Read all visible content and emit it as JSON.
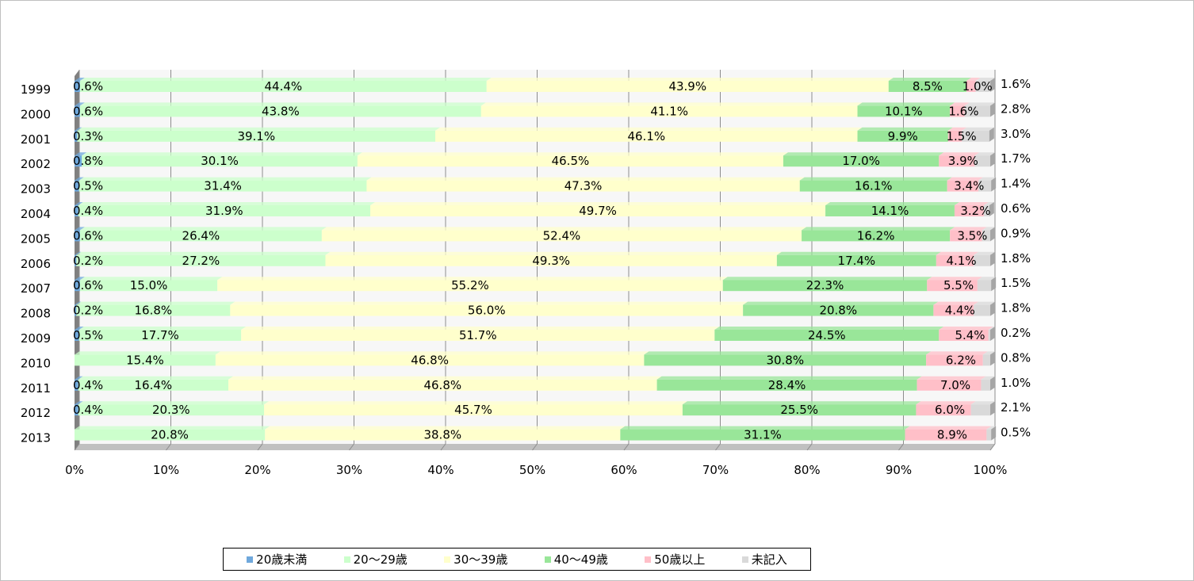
{
  "chart_data": {
    "type": "bar",
    "orientation": "horizontal",
    "stacked": "percent",
    "categories": [
      "1999",
      "2000",
      "2001",
      "2002",
      "2003",
      "2004",
      "2005",
      "2006",
      "2007",
      "2008",
      "2009",
      "2010",
      "2011",
      "2012",
      "2013"
    ],
    "series": [
      {
        "name": "20歳未満",
        "color": "#6fa8dc",
        "values": [
          0.6,
          0.6,
          0.3,
          0.8,
          0.5,
          0.4,
          0.6,
          0.2,
          0.6,
          0.2,
          0.5,
          0.0,
          0.4,
          0.4,
          0.0
        ],
        "labels": [
          "0.6%",
          "0.6%",
          "0.3%",
          "0.8%",
          "0.5%",
          "0.4%",
          "0.6%",
          "0.2%",
          "0.6%",
          "0.2%",
          "0.5%",
          "",
          "0.4%",
          "0.4%",
          ""
        ]
      },
      {
        "name": "20～29歳",
        "color": "#ccffcc",
        "values": [
          44.4,
          43.8,
          39.1,
          30.1,
          31.4,
          31.9,
          26.4,
          27.2,
          15.0,
          16.8,
          17.7,
          15.4,
          16.4,
          20.3,
          20.8
        ],
        "labels": [
          "44.4%",
          "43.8%",
          "39.1%",
          "30.1%",
          "31.4%",
          "31.9%",
          "26.4%",
          "27.2%",
          "15.0%",
          "16.8%",
          "17.7%",
          "15.4%",
          "16.4%",
          "20.3%",
          "20.8%"
        ]
      },
      {
        "name": "30～39歳",
        "color": "#ffffcc",
        "values": [
          43.9,
          41.1,
          46.1,
          46.5,
          47.3,
          49.7,
          52.4,
          49.3,
          55.2,
          56.0,
          51.7,
          46.8,
          46.8,
          45.7,
          38.8
        ],
        "labels": [
          "43.9%",
          "41.1%",
          "46.1%",
          "46.5%",
          "47.3%",
          "49.7%",
          "52.4%",
          "49.3%",
          "55.2%",
          "56.0%",
          "51.7%",
          "46.8%",
          "46.8%",
          "45.7%",
          "38.8%"
        ]
      },
      {
        "name": "40～49歳",
        "color": "#99e699",
        "values": [
          8.5,
          10.1,
          9.9,
          17.0,
          16.1,
          14.1,
          16.2,
          17.4,
          22.3,
          20.8,
          24.5,
          30.8,
          28.4,
          25.5,
          31.1
        ],
        "labels": [
          "8.5%",
          "10.1%",
          "9.9%",
          "17.0%",
          "16.1%",
          "14.1%",
          "16.2%",
          "17.4%",
          "22.3%",
          "20.8%",
          "24.5%",
          "30.8%",
          "28.4%",
          "25.5%",
          "31.1%"
        ]
      },
      {
        "name": "50歳以上",
        "color": "#ffbfc8",
        "values": [
          1.0,
          1.6,
          1.5,
          3.9,
          3.4,
          3.2,
          3.5,
          4.1,
          5.5,
          4.4,
          5.4,
          6.2,
          7.0,
          6.0,
          8.9
        ],
        "labels": [
          "1.0%",
          "1.6%",
          "1.5%",
          "3.9%",
          "3.4%",
          "3.2%",
          "3.5%",
          "4.1%",
          "5.5%",
          "4.4%",
          "5.4%",
          "6.2%",
          "7.0%",
          "6.0%",
          "8.9%"
        ]
      },
      {
        "name": "未記入",
        "color": "#d9d9d9",
        "values": [
          1.6,
          2.8,
          3.0,
          1.7,
          1.4,
          0.6,
          0.9,
          1.8,
          1.5,
          1.8,
          0.2,
          0.8,
          1.0,
          2.1,
          0.5
        ],
        "labels": [
          "1.6%",
          "2.8%",
          "3.0%",
          "1.7%",
          "1.4%",
          "0.6%",
          "0.9%",
          "1.8%",
          "1.5%",
          "1.8%",
          "0.2%",
          "0.8%",
          "1.0%",
          "2.1%",
          "0.5%"
        ]
      }
    ],
    "x_ticks": [
      "0%",
      "10%",
      "20%",
      "30%",
      "40%",
      "50%",
      "60%",
      "70%",
      "80%",
      "90%",
      "100%"
    ],
    "xlim": [
      0,
      100
    ],
    "grid": true,
    "legend_position": "bottom"
  }
}
